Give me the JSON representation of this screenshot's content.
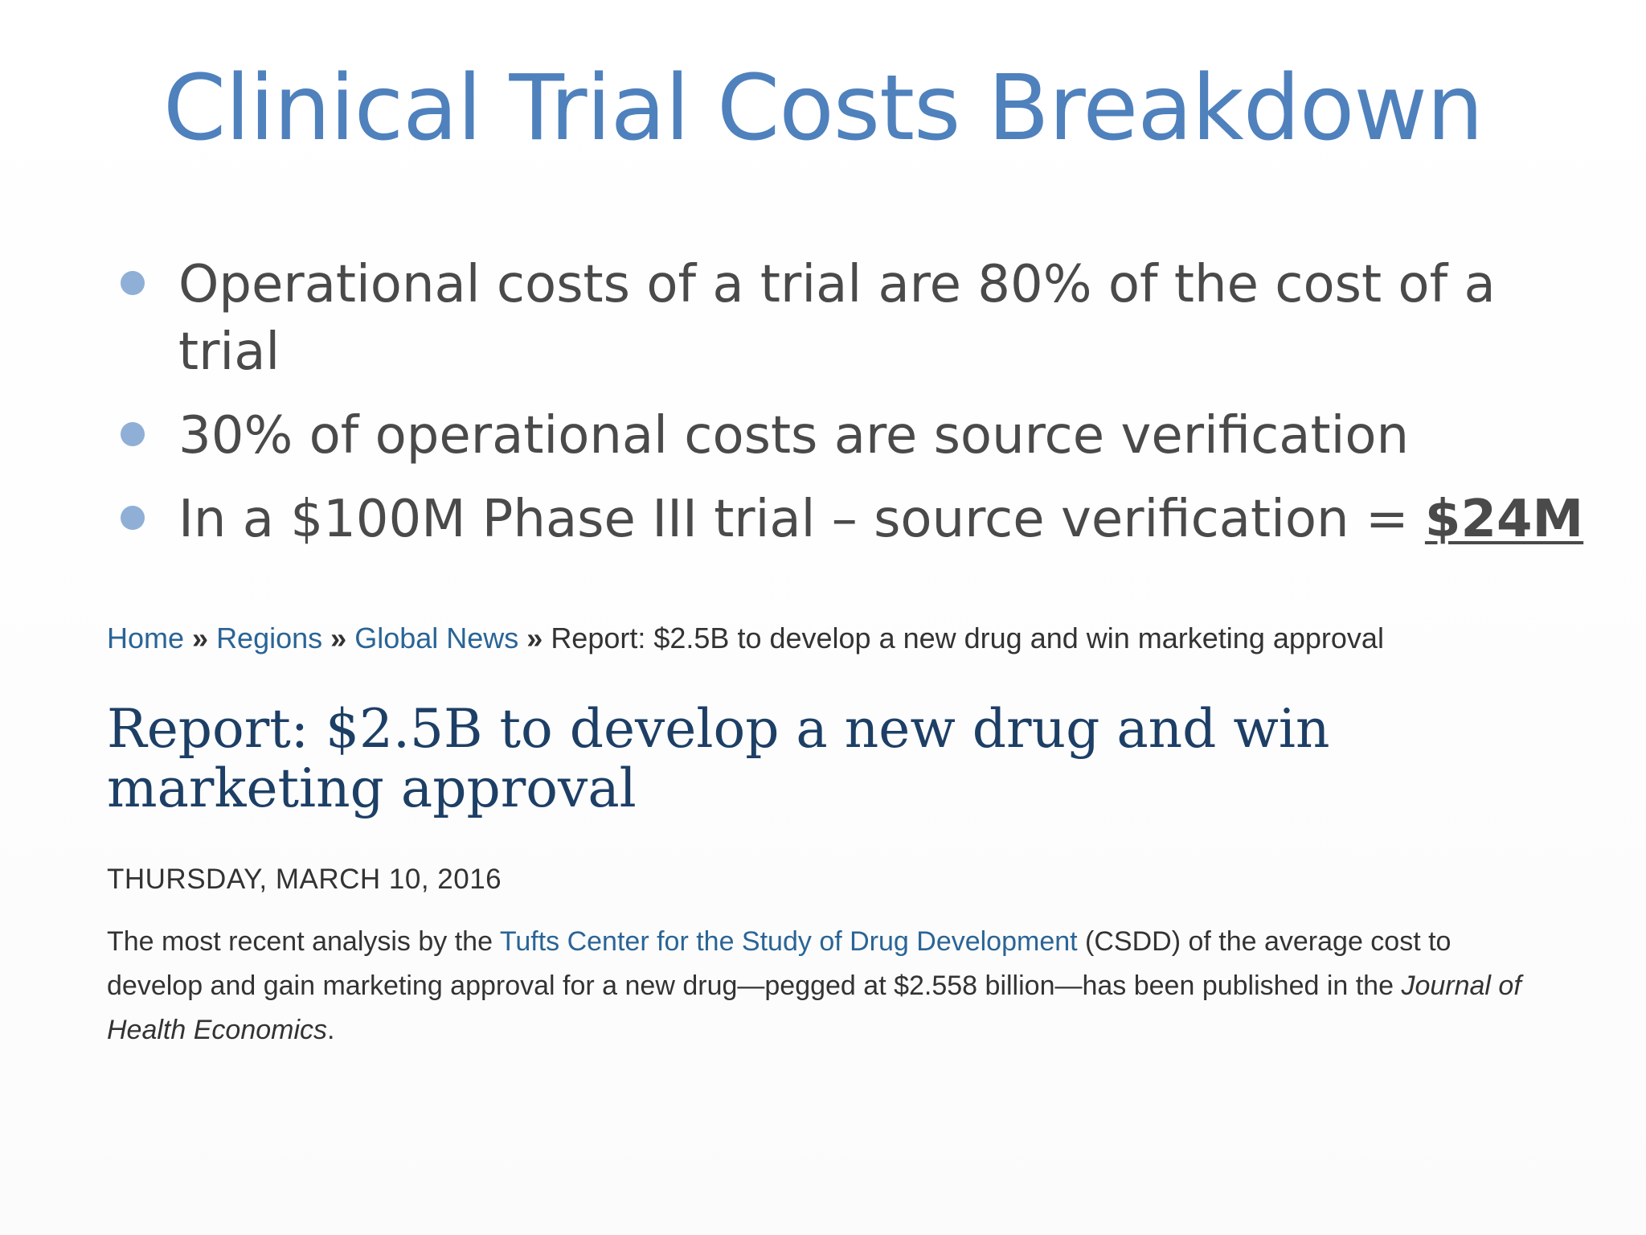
{
  "slide": {
    "title": "Clinical Trial Costs Breakdown",
    "bullets": [
      {
        "text": "Operational costs of a trial are 80% of the cost of a trial"
      },
      {
        "text": "30% of operational costs are source verification"
      },
      {
        "text": "In a $100M Phase III trial – source verification = ",
        "emphasis": "$24M"
      }
    ]
  },
  "article": {
    "breadcrumb": {
      "items": [
        "Home",
        "Regions",
        "Global News"
      ],
      "separator": "»",
      "current": "Report: $2.5B to develop a new drug and win marketing approval"
    },
    "headline": "Report: $2.5B to develop a new drug and win marketing approval",
    "date": "THURSDAY, MARCH 10, 2016",
    "body": {
      "part1": "The most recent analysis by the ",
      "link": "Tufts Center for the Study of Drug Development",
      "part2": " (CSDD) of the average cost to develop and gain marketing approval for a new drug—pegged at $2.558 billion—has been published in the ",
      "italic": "Journal of Health Economics",
      "part3": "."
    }
  },
  "colors": {
    "title": "#4f81bd",
    "bullet_text": "#4a4a4a",
    "bullet_dot": "#8fafd6",
    "link": "#2a6496",
    "headline": "#1d3f66",
    "body_text": "#333333"
  }
}
